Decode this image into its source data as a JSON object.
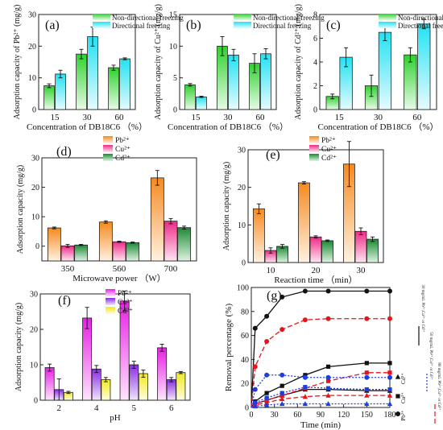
{
  "figure": {
    "panels": [
      {
        "id": "a",
        "type": "bar",
        "panel_label": "(a)",
        "ylabel": "Adsorption capacity of Pb²⁺ (mg/g)",
        "xlabel": "Concentration of DB18C6  （%）",
        "categories": [
          "15",
          "30",
          "60"
        ],
        "ylim": [
          0,
          30
        ],
        "yticks": [
          0,
          10,
          20,
          30
        ],
        "legend_position": "top-right",
        "series": [
          {
            "name": "Non-directional freezing",
            "values": [
              7.5,
              17.5,
              13.2
            ],
            "errors": [
              0.6,
              1.5,
              0.8
            ],
            "gradient": "green"
          },
          {
            "name": "Directional freezing",
            "values": [
              11.2,
              23.0,
              16.0
            ],
            "errors": [
              1.2,
              3.0,
              0.3
            ],
            "gradient": "cyan"
          }
        ]
      },
      {
        "id": "b",
        "type": "bar",
        "panel_label": "(b)",
        "ylabel": "Adsorption capacity of Cu²⁺ (mg/g)",
        "xlabel": "Concentration of DB18C6  （%）",
        "categories": [
          "15",
          "30",
          "60"
        ],
        "ylim": [
          0,
          15
        ],
        "yticks": [
          0,
          5,
          10,
          15
        ],
        "legend_position": "top-right",
        "series": [
          {
            "name": "Non-directional freezing",
            "values": [
              3.9,
              10.0,
              7.3
            ],
            "errors": [
              0.2,
              1.5,
              1.5
            ],
            "gradient": "green"
          },
          {
            "name": "Directional freezing",
            "values": [
              2.0,
              8.6,
              8.8
            ],
            "errors": [
              0.1,
              0.9,
              0.8
            ],
            "gradient": "cyan"
          }
        ]
      },
      {
        "id": "c",
        "type": "bar",
        "panel_label": "(c)",
        "ylabel": "Adsorption capacity of Cd²⁺ (mg/g)",
        "xlabel": "Concentration of DB18C6  （%）",
        "categories": [
          "15",
          "30",
          "60"
        ],
        "ylim": [
          0,
          8
        ],
        "yticks": [
          0,
          2,
          4,
          6,
          8
        ],
        "legend_position": "top-right",
        "series": [
          {
            "name": "Non-directional freezing",
            "values": [
              1.1,
              2.0,
              4.6
            ],
            "errors": [
              0.2,
              0.9,
              0.6
            ],
            "gradient": "green"
          },
          {
            "name": "Directional freezing",
            "values": [
              4.4,
              6.5,
              7.2
            ],
            "errors": [
              0.8,
              0.7,
              0.4
            ],
            "gradient": "cyan"
          }
        ]
      },
      {
        "id": "d",
        "type": "bar",
        "panel_label": "(d)",
        "ylabel": "Adsorption capacity    (mg/g)",
        "xlabel": "Microwave power （W）",
        "categories": [
          "350",
          "560",
          "700"
        ],
        "ylim": [
          -5,
          30
        ],
        "yticks": [
          0,
          10,
          20,
          30
        ],
        "legend_position": "top-left",
        "series": [
          {
            "name": "Pb²⁺",
            "values": [
              6.2,
              8.2,
              23.2
            ],
            "errors": [
              0.3,
              0.4,
              2.5
            ],
            "gradient": "orange"
          },
          {
            "name": "Cu²⁺",
            "values": [
              0.1,
              1.5,
              8.5
            ],
            "errors": [
              0.5,
              0.2,
              0.9
            ],
            "gradient": "pink"
          },
          {
            "name": "Cd²⁺",
            "values": [
              0.4,
              1.2,
              6.3
            ],
            "errors": [
              0.2,
              0.2,
              0.5
            ],
            "gradient": "darkgreen"
          }
        ]
      },
      {
        "id": "e",
        "type": "bar",
        "panel_label": "(e)",
        "ylabel": "Adsorption capacity    (mg/g)",
        "xlabel": "Reaction time  （min）",
        "categories": [
          "10",
          "20",
          "30"
        ],
        "ylim": [
          0,
          30
        ],
        "yticks": [
          0,
          10,
          20,
          30
        ],
        "legend_position": "top-left",
        "series": [
          {
            "name": "Pb²⁺",
            "values": [
              14.3,
              21.2,
              26.2
            ],
            "errors": [
              1.3,
              0.3,
              6.0
            ],
            "gradient": "orange"
          },
          {
            "name": "Cu²⁺",
            "values": [
              3.2,
              6.8,
              8.3
            ],
            "errors": [
              0.7,
              0.3,
              0.9
            ],
            "gradient": "pink"
          },
          {
            "name": "Cd²⁺",
            "values": [
              4.3,
              5.8,
              6.2
            ],
            "errors": [
              0.5,
              0.2,
              0.6
            ],
            "gradient": "darkgreen"
          }
        ]
      },
      {
        "id": "f",
        "type": "bar",
        "panel_label": "(f)",
        "ylabel": "Adsorption capacity (mg/g)",
        "xlabel": "pH",
        "categories": [
          "2",
          "4",
          "5",
          "6"
        ],
        "ylim": [
          0,
          30
        ],
        "yticks": [
          0,
          10,
          20,
          30
        ],
        "legend_position": "top-center",
        "series": [
          {
            "name": "Pb²⁺",
            "values": [
              9.2,
              23.2,
              28.0,
              14.8
            ],
            "errors": [
              1.0,
              3.0,
              2.8,
              1.0
            ],
            "gradient": "magenta"
          },
          {
            "name": "Cu²⁺",
            "values": [
              3.0,
              8.8,
              10.0,
              5.8
            ],
            "errors": [
              3.0,
              1.0,
              1.0,
              0.6
            ],
            "gradient": "purple"
          },
          {
            "name": "Cd²⁺",
            "values": [
              2.2,
              5.8,
              7.5,
              7.8
            ],
            "errors": [
              0.3,
              0.6,
              1.0,
              0.3
            ],
            "gradient": "yellow"
          }
        ]
      },
      {
        "id": "g",
        "type": "line",
        "panel_label": "(g)",
        "ylabel": "Removal percentage (%)",
        "xlabel": "Time (min)",
        "xlim": [
          0,
          180
        ],
        "ylim": [
          0,
          100
        ],
        "xticks": [
          0,
          30,
          60,
          90,
          120,
          150,
          180
        ],
        "yticks": [
          0,
          20,
          40,
          60,
          80,
          100
        ],
        "legend_position": "right",
        "series": [
          {
            "color": "#111111",
            "dash": "",
            "marker": "circle",
            "x": [
              0,
              5,
              20,
              40,
              70,
              100,
              150,
              180
            ],
            "y": [
              0,
              66,
              76,
              92,
              97,
              97,
              97,
              97
            ]
          },
          {
            "color": "#111111",
            "dash": "",
            "marker": "square",
            "x": [
              0,
              5,
              20,
              40,
              70,
              100,
              150,
              180
            ],
            "y": [
              0,
              5,
              12,
              18,
              27,
              34,
              37,
              37
            ]
          },
          {
            "color": "#111111",
            "dash": "",
            "marker": "triangle",
            "x": [
              0,
              5,
              20,
              40,
              70,
              100,
              150,
              180
            ],
            "y": [
              0,
              3,
              6,
              10,
              15,
              15,
              14,
              14
            ]
          },
          {
            "color": "#e8141c",
            "dash": "6,3",
            "marker": "circle",
            "x": [
              0,
              5,
              20,
              40,
              70,
              100,
              150,
              180
            ],
            "y": [
              0,
              34,
              55,
              65,
              73,
              74,
              74,
              74
            ]
          },
          {
            "color": "#e8141c",
            "dash": "6,3",
            "marker": "square",
            "x": [
              0,
              5,
              20,
              40,
              70,
              100,
              150,
              180
            ],
            "y": [
              0,
              3,
              6,
              10,
              16,
              22,
              29,
              29
            ]
          },
          {
            "color": "#e8141c",
            "dash": "6,3",
            "marker": "triangle",
            "x": [
              0,
              5,
              20,
              40,
              70,
              100,
              150,
              180
            ],
            "y": [
              0,
              2,
              4,
              7,
              9,
              10,
              10,
              10
            ]
          },
          {
            "color": "#1c3ee0",
            "dash": "2,2",
            "marker": "circle",
            "x": [
              0,
              5,
              20,
              40,
              70,
              100,
              150,
              180
            ],
            "y": [
              0,
              15,
              27,
              27,
              25,
              25,
              25,
              25
            ]
          },
          {
            "color": "#1c3ee0",
            "dash": "2,2",
            "marker": "square",
            "x": [
              0,
              5,
              20,
              40,
              70,
              100,
              150,
              180
            ],
            "y": [
              0,
              4,
              8,
              12,
              17,
              16,
              15,
              15
            ]
          },
          {
            "color": "#1c3ee0",
            "dash": "2,2",
            "marker": "triangle",
            "x": [
              0,
              5,
              20,
              40,
              70,
              100,
              150,
              180
            ],
            "y": [
              0,
              1,
              2,
              3,
              3,
              3,
              3,
              3
            ]
          }
        ],
        "legend": {
          "ion_labels": [
            "Cd²⁺",
            "Cu²⁺",
            "Pb²⁺"
          ],
          "ion_markers": [
            "triangle",
            "square",
            "circle"
          ],
          "line_labels": [
            "30 mg/mL Pb²⁺,Cu²⁺ or Cd²⁺",
            "50 mg/mL Pb²⁺,Cu²⁺ or Cd²⁺",
            "80 mg/mL Pb²⁺,Cu²⁺ or Cd²⁺"
          ],
          "line_colors": [
            "#111111",
            "#1c3ee0",
            "#e8141c"
          ],
          "line_dashes": [
            "",
            "2,2",
            "6,3"
          ]
        }
      }
    ]
  },
  "colors": {
    "green": [
      "#2ed12e",
      "#e7fbe7"
    ],
    "cyan": [
      "#22e2f2",
      "#e6fbfe"
    ],
    "orange": [
      "#f58a1f",
      "#fff2e2"
    ],
    "pink": [
      "#ee2a86",
      "#ffe6f2"
    ],
    "darkgreen": [
      "#1a8a33",
      "#dff3e2"
    ],
    "magenta": [
      "#e91ee5",
      "#fde6fc"
    ],
    "purple": [
      "#8a2be2",
      "#f0e6fd"
    ],
    "yellow": [
      "#f2ea1a",
      "#fdfce2"
    ]
  }
}
